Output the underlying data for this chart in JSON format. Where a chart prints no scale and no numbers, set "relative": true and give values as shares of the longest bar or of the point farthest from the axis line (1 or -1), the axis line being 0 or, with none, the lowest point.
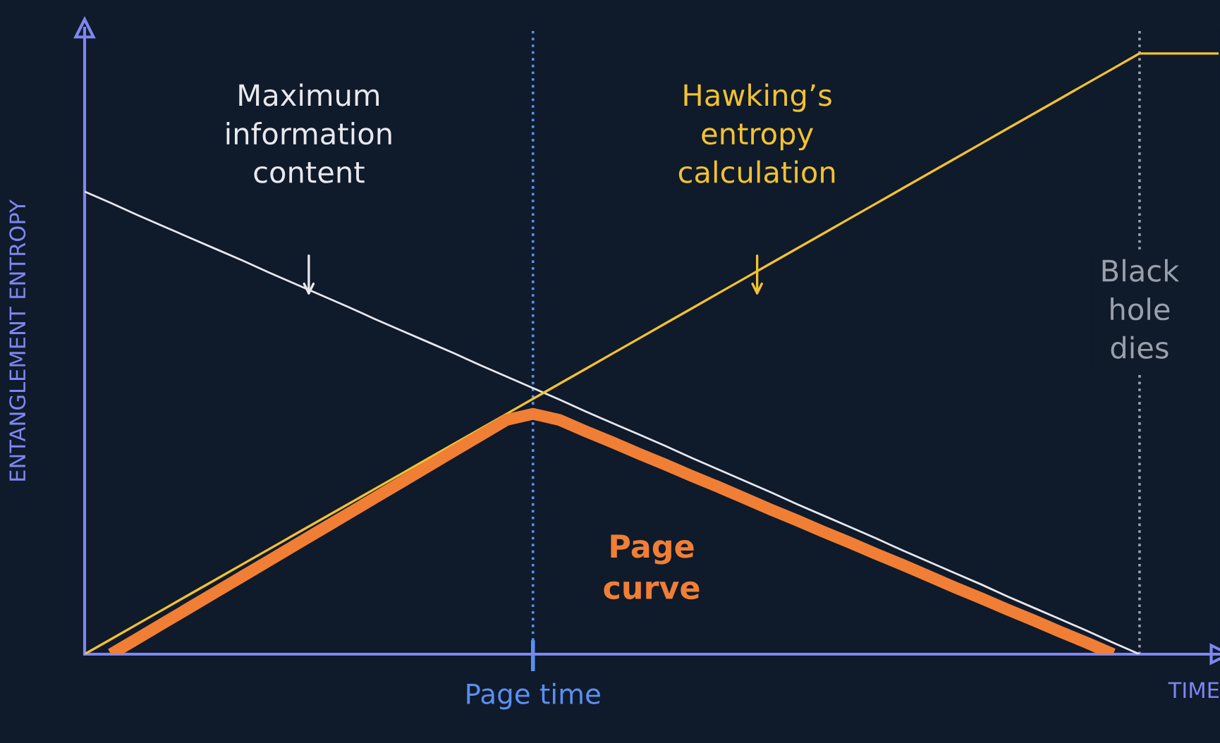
{
  "chart_data": {
    "type": "line",
    "relative": true,
    "xlabel": "TIME",
    "ylabel": "ENTANGLEMENT ENTROPY",
    "categories": [
      null,
      null,
      null,
      null,
      null,
      null,
      null,
      null,
      null,
      null,
      null,
      null,
      null,
      null,
      null,
      null,
      null,
      null,
      null,
      null,
      null,
      null,
      null,
      null,
      null,
      null,
      null,
      null,
      null,
      null,
      null,
      null,
      null,
      null,
      null,
      null,
      null,
      null,
      null,
      null,
      null,
      null,
      null,
      null
    ],
    "series": [
      {
        "name": "Maximum\ninformation\ncontent",
        "color": "#e8e8ee",
        "values": [
          0.77,
          0.751,
          0.731,
          0.712,
          0.693,
          0.674,
          0.655,
          0.635,
          0.616,
          0.597,
          0.578,
          0.558,
          0.539,
          0.52,
          0.501,
          0.481,
          0.462,
          0.443,
          0.424,
          0.404,
          0.385,
          0.366,
          0.347,
          0.327,
          0.308,
          0.289,
          0.27,
          0.25,
          0.231,
          0.212,
          0.193,
          0.173,
          0.154,
          0.135,
          0.116,
          0.096,
          0.077,
          0.058,
          0.039,
          0.019,
          0,
          null,
          null,
          null
        ]
      },
      {
        "name": "Hawking’s\nentropy\ncalculation",
        "color": "#f2c230",
        "values": [
          0,
          0.025,
          0.05,
          0.075,
          0.1,
          0.125,
          0.15,
          0.175,
          0.2,
          0.225,
          0.25,
          0.275,
          0.3,
          0.325,
          0.35,
          0.375,
          0.4,
          0.425,
          0.45,
          0.475,
          0.5,
          0.525,
          0.55,
          0.575,
          0.6,
          0.625,
          0.65,
          0.675,
          0.7,
          0.725,
          0.75,
          0.775,
          0.8,
          0.825,
          0.85,
          0.875,
          0.9,
          0.925,
          0.95,
          0.975,
          1,
          1,
          1,
          1
        ]
      },
      {
        "name": "Page\ncurve",
        "color": "#f07f35",
        "values": [
          null,
          0,
          0.026,
          0.052,
          0.078,
          0.104,
          0.13,
          0.156,
          0.182,
          0.208,
          0.234,
          0.26,
          0.286,
          0.312,
          0.338,
          0.364,
          0.39,
          0.4,
          0.39,
          0.371,
          0.353,
          0.334,
          0.316,
          0.297,
          0.279,
          0.26,
          0.241,
          0.223,
          0.204,
          0.186,
          0.167,
          0.149,
          0.13,
          0.111,
          0.093,
          0.074,
          0.056,
          0.037,
          0.019,
          0,
          null,
          null,
          null,
          null
        ]
      }
    ],
    "annotations": [
      "Page time",
      "Black\nhole\ndies"
    ],
    "grid": false,
    "legend": false,
    "marker": "none",
    "line_style": "solid"
  }
}
